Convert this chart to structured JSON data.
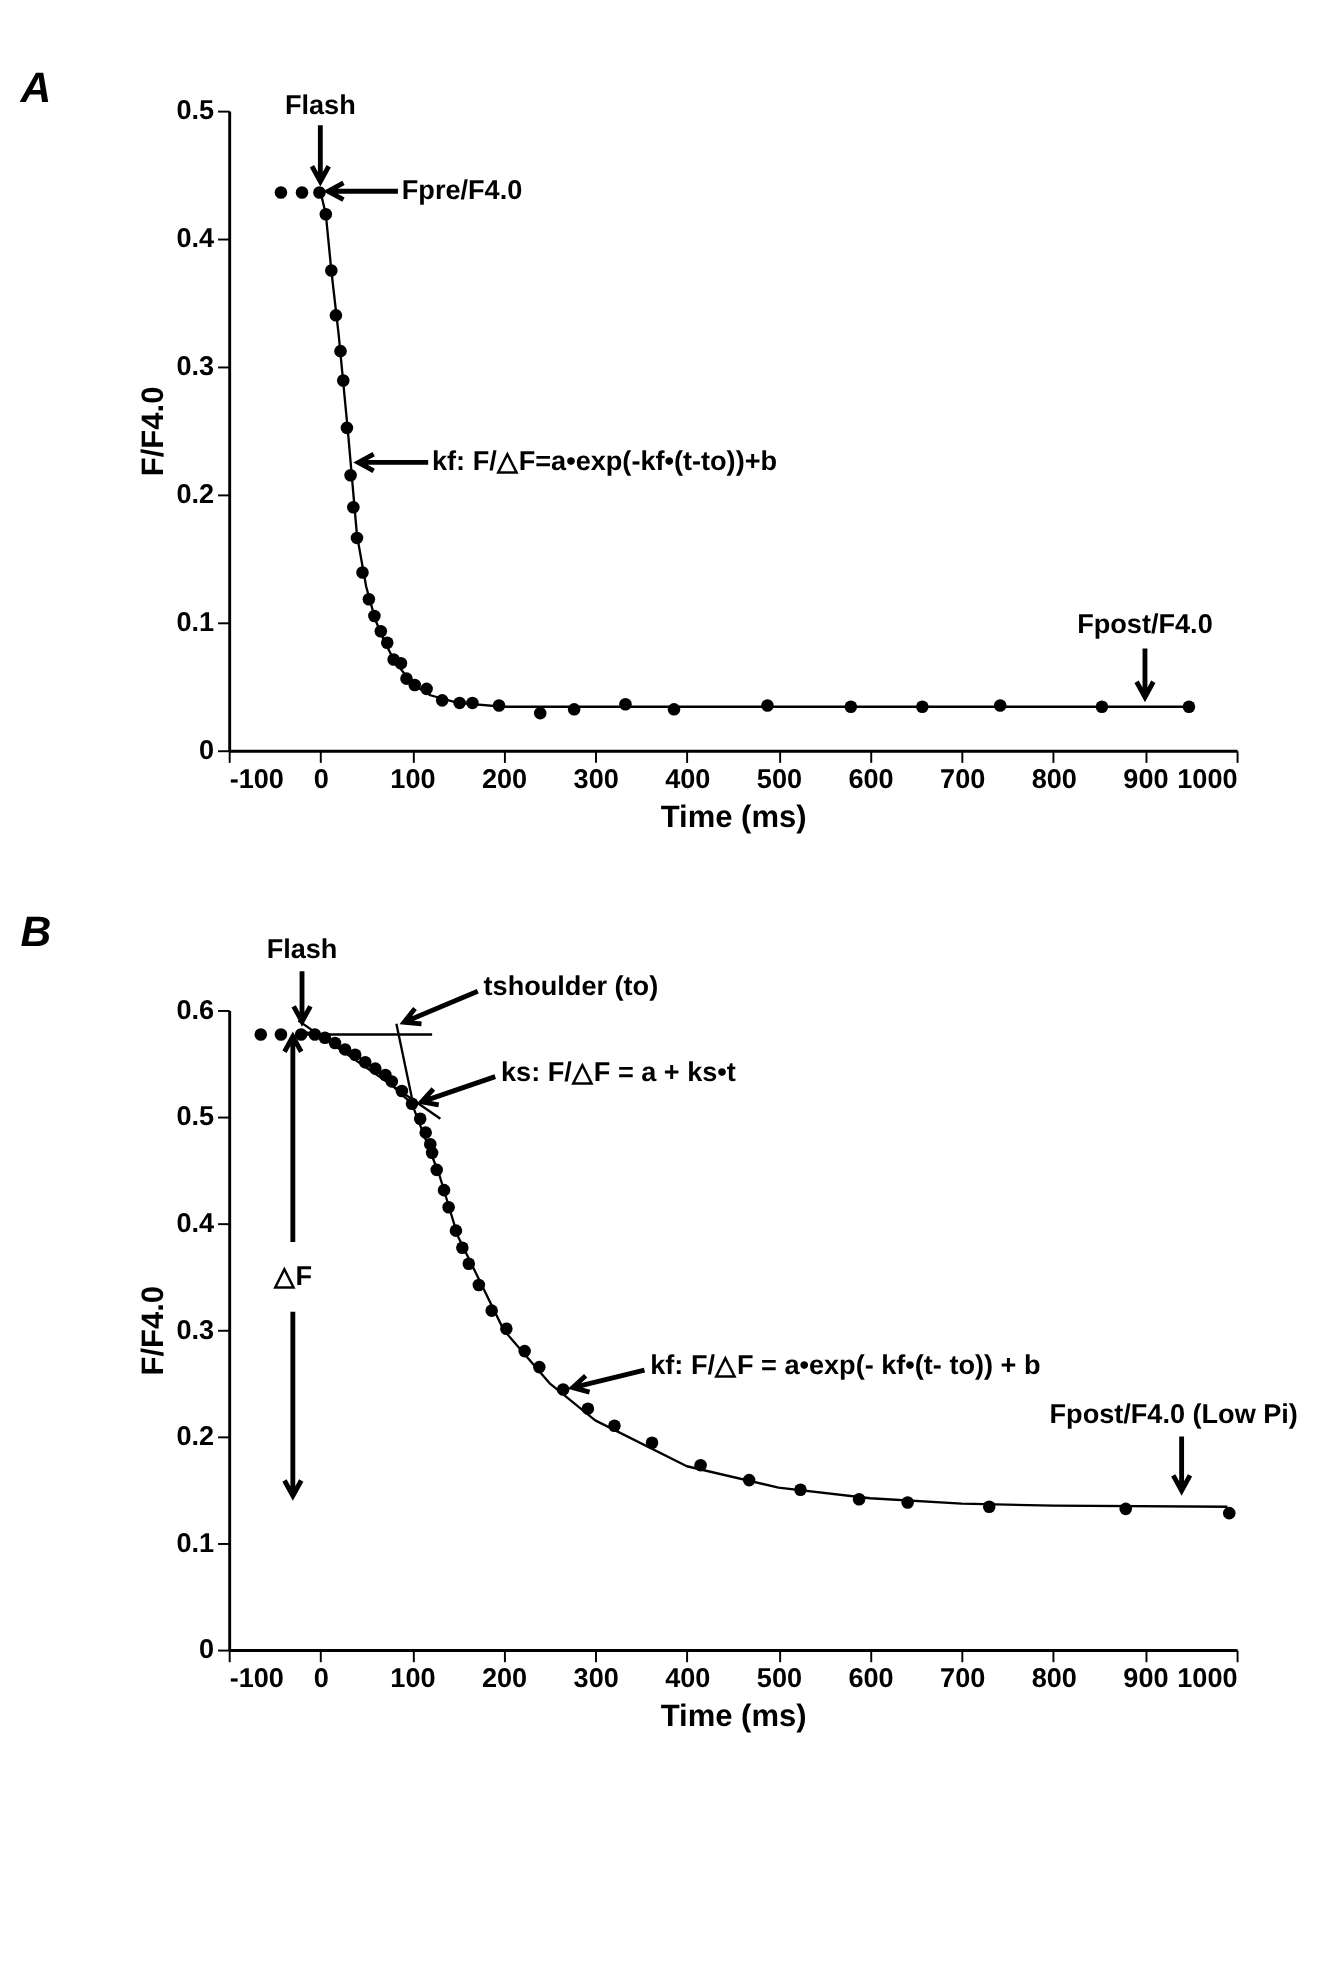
{
  "chart_data": [
    {
      "type": "scatter",
      "title": "A",
      "xlabel": "Time (ms)",
      "ylabel": "F/F4.0",
      "xlim": [
        -100,
        1000
      ],
      "ylim": [
        0,
        0.5
      ],
      "xticks": [
        -100,
        0,
        100,
        200,
        300,
        400,
        500,
        600,
        700,
        800,
        900,
        1000
      ],
      "yticks": [
        0,
        0.1,
        0.2,
        0.3,
        0.4,
        0.5
      ],
      "grid": false,
      "series": [
        {
          "marker": "circle",
          "color": "#000000",
          "x": [
            -43,
            -20,
            -1,
            6,
            12,
            17,
            22,
            25,
            29,
            33,
            36,
            40,
            46,
            53,
            59,
            66,
            73,
            80,
            88,
            94,
            103,
            116,
            133,
            152,
            166,
            195,
            240,
            277,
            333,
            386,
            488,
            579,
            657,
            742,
            853,
            948
          ],
          "values": [
            0.436,
            0.436,
            0.436,
            0.419,
            0.375,
            0.34,
            0.312,
            0.289,
            0.252,
            0.215,
            0.19,
            0.166,
            0.139,
            0.118,
            0.105,
            0.093,
            0.084,
            0.071,
            0.068,
            0.056,
            0.051,
            0.048,
            0.039,
            0.037,
            0.037,
            0.035,
            0.029,
            0.032,
            0.036,
            0.032,
            0.035,
            0.034,
            0.034,
            0.035,
            0.034,
            0.034
          ]
        },
        {
          "type": "line",
          "marker": "none",
          "color": "#000000",
          "x": [
            0,
            6,
            12,
            20,
            30,
            40,
            50,
            60,
            70,
            80,
            100,
            120,
            150,
            200,
            948
          ],
          "values": [
            0.437,
            0.419,
            0.375,
            0.325,
            0.25,
            0.168,
            0.128,
            0.102,
            0.085,
            0.071,
            0.052,
            0.043,
            0.037,
            0.034,
            0.034
          ]
        }
      ],
      "annotations": [
        {
          "text": "Flash",
          "x": 0,
          "y": 0.437
        },
        "Fpre/F4.0",
        "kf: F/△F=a•exp(-kf•(t-to))+b",
        {
          "text": "Fpost/F4.0",
          "x": 900,
          "y": 0.034
        }
      ]
    },
    {
      "type": "scatter",
      "title": "B",
      "xlabel": "Time (ms)",
      "ylabel": "F/F4.0",
      "xlim": [
        -100,
        1000
      ],
      "ylim": [
        0,
        0.6
      ],
      "xticks": [
        -100,
        0,
        100,
        200,
        300,
        400,
        500,
        600,
        700,
        800,
        900,
        1000
      ],
      "yticks": [
        0,
        0.1,
        0.2,
        0.3,
        0.4,
        0.5,
        0.6
      ],
      "grid": false,
      "series": [
        {
          "marker": "circle",
          "color": "#000000",
          "x": [
            -65,
            -43,
            -21,
            -6,
            5,
            16,
            27,
            38,
            49,
            60,
            71,
            78,
            89,
            100,
            109,
            115,
            120,
            122,
            127,
            135,
            140,
            148,
            155,
            162,
            173,
            187,
            203,
            223,
            239,
            265,
            292,
            321,
            362,
            415,
            468,
            524,
            588,
            641,
            730,
            879,
            992
          ],
          "values": [
            0.577,
            0.577,
            0.577,
            0.577,
            0.574,
            0.569,
            0.563,
            0.558,
            0.551,
            0.545,
            0.539,
            0.533,
            0.524,
            0.512,
            0.498,
            0.485,
            0.474,
            0.466,
            0.45,
            0.431,
            0.415,
            0.393,
            0.377,
            0.362,
            0.342,
            0.318,
            0.301,
            0.28,
            0.265,
            0.244,
            0.226,
            0.21,
            0.194,
            0.173,
            0.159,
            0.15,
            0.141,
            0.138,
            0.134,
            0.132,
            0.128
          ]
        },
        {
          "type": "line",
          "marker": "none",
          "color": "#000000",
          "x": [
            -20,
            0,
            50,
            100,
            130,
            150,
            200,
            250,
            300,
            400,
            500,
            600,
            700,
            800,
            990
          ],
          "values": [
            0.58,
            0.576,
            0.552,
            0.512,
            0.445,
            0.388,
            0.3,
            0.25,
            0.215,
            0.172,
            0.152,
            0.142,
            0.137,
            0.135,
            0.134
          ]
        },
        {
          "type": "line",
          "marker": "none",
          "color": "#000000",
          "x": [
            -21,
            122
          ],
          "values": [
            0.577,
            0.577
          ]
        },
        {
          "type": "line",
          "marker": "none",
          "color": "#000000",
          "x": [
            -24,
            131
          ],
          "values": [
            0.59,
            0.498
          ]
        },
        {
          "type": "line",
          "marker": "none",
          "color": "#000000",
          "x": [
            83,
            102
          ],
          "values": [
            0.587,
            0.509
          ]
        }
      ],
      "annotations": [
        {
          "text": "Flash",
          "x": -20,
          "y": 0.58
        },
        "tshoulder (to)",
        "ks:  F/△F = a + ks•t",
        {
          "text": "△F",
          "x": -30,
          "y": 0.577
        },
        "kf:  F/△F = a•exp(- kf•(t- to)) + b",
        {
          "text": "Fpost/F4.0 (Low Pi)",
          "x": 940,
          "y": 0.14
        }
      ]
    }
  ]
}
